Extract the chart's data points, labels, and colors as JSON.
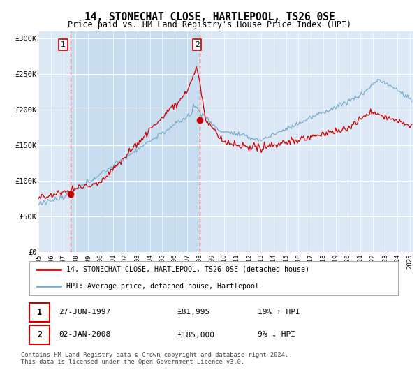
{
  "title": "14, STONECHAT CLOSE, HARTLEPOOL, TS26 0SE",
  "subtitle": "Price paid vs. HM Land Registry's House Price Index (HPI)",
  "legend_label_red": "14, STONECHAT CLOSE, HARTLEPOOL, TS26 0SE (detached house)",
  "legend_label_blue": "HPI: Average price, detached house, Hartlepool",
  "transaction1_date_label": "27-JUN-1997",
  "transaction1_price": "£81,995",
  "transaction1_hpi": "19% ↑ HPI",
  "transaction2_date_label": "02-JAN-2008",
  "transaction2_price": "£185,000",
  "transaction2_hpi": "9% ↓ HPI",
  "footer": "Contains HM Land Registry data © Crown copyright and database right 2024.\nThis data is licensed under the Open Government Licence v3.0.",
  "ylim": [
    0,
    310000
  ],
  "yticks": [
    0,
    50000,
    100000,
    150000,
    200000,
    250000,
    300000
  ],
  "ytick_labels": [
    "£0",
    "£50K",
    "£100K",
    "£150K",
    "£200K",
    "£250K",
    "£300K"
  ],
  "color_red": "#cc0000",
  "color_blue": "#7aadcc",
  "background_plot": "#dce8f5",
  "background_fig": "#ffffff",
  "vline_color": "#dd4444",
  "shade_color": "#c8ddf0",
  "marker1_value": 81995,
  "marker2_value": 185000,
  "t1_year": 1997.56,
  "t2_year": 2008.01
}
